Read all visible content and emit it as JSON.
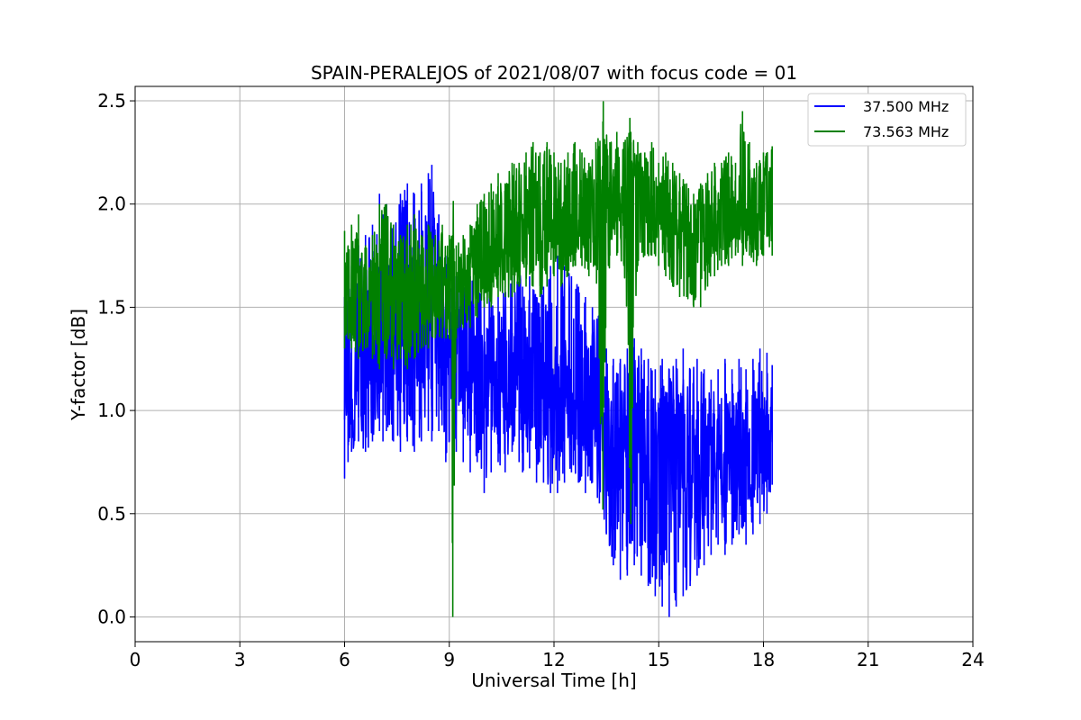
{
  "chart_data": {
    "type": "line",
    "title": "SPAIN-PERALEJOS of 2021/08/07 with focus code = 01",
    "xlabel": "Universal Time [h]",
    "ylabel": "Y-factor [dB]",
    "xlim": [
      0,
      24
    ],
    "ylim": [
      -0.12,
      2.57
    ],
    "xticks": [
      "0",
      "3",
      "6",
      "9",
      "12",
      "15",
      "18",
      "21",
      "24"
    ],
    "yticks": [
      "0.0",
      "0.5",
      "1.0",
      "1.5",
      "2.0",
      "2.5"
    ],
    "grid": true,
    "legend_position": "top-right",
    "series": [
      {
        "name": "37.500 MHz",
        "color": "#0000ff",
        "x": [
          6.0,
          6.1,
          6.2,
          6.4,
          6.6,
          6.8,
          7.0,
          7.1,
          7.2,
          7.4,
          7.6,
          7.8,
          8.0,
          8.2,
          8.4,
          8.5,
          8.7,
          8.9,
          9.0,
          9.2,
          9.4,
          9.6,
          9.8,
          10.0,
          10.2,
          10.4,
          10.6,
          10.8,
          11.0,
          11.1,
          11.3,
          11.5,
          11.7,
          11.9,
          12.1,
          12.3,
          12.5,
          12.7,
          12.9,
          13.1,
          13.3,
          13.5,
          13.7,
          13.9,
          14.1,
          14.3,
          14.5,
          14.7,
          14.9,
          15.1,
          15.3,
          15.5,
          15.7,
          15.9,
          16.1,
          16.3,
          16.5,
          16.7,
          16.9,
          17.1,
          17.3,
          17.5,
          17.7,
          17.9,
          18.1,
          18.25
        ],
        "y": [
          1.05,
          1.2,
          1.1,
          1.15,
          1.2,
          1.25,
          1.3,
          1.5,
          1.45,
          1.4,
          1.35,
          1.45,
          1.4,
          1.5,
          1.45,
          1.7,
          1.4,
          1.35,
          1.3,
          1.25,
          1.2,
          1.25,
          1.2,
          1.1,
          1.15,
          1.1,
          1.15,
          1.2,
          1.25,
          1.15,
          1.1,
          1.05,
          1.1,
          1.1,
          1.05,
          1.1,
          1.15,
          1.1,
          1.05,
          1.1,
          0.95,
          0.85,
          0.8,
          0.75,
          0.8,
          0.75,
          0.7,
          0.75,
          0.7,
          0.7,
          0.75,
          0.7,
          0.75,
          0.7,
          0.75,
          0.7,
          0.75,
          0.8,
          0.75,
          0.8,
          0.8,
          0.75,
          0.8,
          0.8,
          0.85,
          0.85
        ],
        "env_hi": [
          1.55,
          1.65,
          1.7,
          1.8,
          1.85,
          1.9,
          2.05,
          1.95,
          2.0,
          1.9,
          2.05,
          2.1,
          2.05,
          2.1,
          2.15,
          2.19,
          1.95,
          1.75,
          1.7,
          1.65,
          1.6,
          1.65,
          1.6,
          1.55,
          1.6,
          1.55,
          1.6,
          1.65,
          1.7,
          1.6,
          1.65,
          1.55,
          1.6,
          1.7,
          1.75,
          1.7,
          1.65,
          1.6,
          1.55,
          1.5,
          1.45,
          1.3,
          1.25,
          1.25,
          1.3,
          1.35,
          1.3,
          1.25,
          1.2,
          1.25,
          1.2,
          1.25,
          1.3,
          1.2,
          1.25,
          1.2,
          1.15,
          1.2,
          1.25,
          1.2,
          1.25,
          1.2,
          1.25,
          1.3,
          1.28,
          1.22
        ],
        "env_lo": [
          0.67,
          0.75,
          0.8,
          0.85,
          0.8,
          0.85,
          0.9,
          0.85,
          0.9,
          0.85,
          0.8,
          0.85,
          0.8,
          0.85,
          0.9,
          0.85,
          0.9,
          0.75,
          0.85,
          0.8,
          0.75,
          0.7,
          0.75,
          0.6,
          0.7,
          0.75,
          0.7,
          0.8,
          0.75,
          0.7,
          0.72,
          0.65,
          0.65,
          0.6,
          0.6,
          0.65,
          0.7,
          0.65,
          0.6,
          0.65,
          0.55,
          0.4,
          0.25,
          0.18,
          0.2,
          0.25,
          0.2,
          0.15,
          0.1,
          0.05,
          0.0,
          0.05,
          0.1,
          0.15,
          0.2,
          0.25,
          0.3,
          0.35,
          0.3,
          0.35,
          0.4,
          0.35,
          0.4,
          0.45,
          0.5,
          0.64
        ]
      },
      {
        "name": "73.563 MHz",
        "color": "#008000",
        "x": [
          6.0,
          6.1,
          6.2,
          6.4,
          6.6,
          6.8,
          7.0,
          7.2,
          7.4,
          7.6,
          7.8,
          8.0,
          8.2,
          8.4,
          8.6,
          8.8,
          9.0,
          9.1,
          9.2,
          9.4,
          9.6,
          9.8,
          10.0,
          10.2,
          10.4,
          10.6,
          10.8,
          11.0,
          11.2,
          11.4,
          11.6,
          11.8,
          12.0,
          12.2,
          12.4,
          12.6,
          12.8,
          13.0,
          13.2,
          13.4,
          13.6,
          13.8,
          14.0,
          14.2,
          14.4,
          14.6,
          14.8,
          15.0,
          15.2,
          15.4,
          15.6,
          15.8,
          16.0,
          16.2,
          16.4,
          16.6,
          16.8,
          17.0,
          17.2,
          17.4,
          17.6,
          17.8,
          18.0,
          18.25
        ],
        "y": [
          1.45,
          1.6,
          1.55,
          1.55,
          1.5,
          1.6,
          1.5,
          1.45,
          1.55,
          1.5,
          1.55,
          1.5,
          1.55,
          1.6,
          1.55,
          1.6,
          1.6,
          1.6,
          1.6,
          1.65,
          1.7,
          1.75,
          1.7,
          1.75,
          1.8,
          1.75,
          1.8,
          1.85,
          1.9,
          1.95,
          1.9,
          1.95,
          1.9,
          1.95,
          1.9,
          1.9,
          1.95,
          1.9,
          2.0,
          2.05,
          2.0,
          2.05,
          2.0,
          2.0,
          2.05,
          2.0,
          2.0,
          1.95,
          2.0,
          1.95,
          1.9,
          1.85,
          1.8,
          1.85,
          1.85,
          1.9,
          1.95,
          1.9,
          1.95,
          2.0,
          1.95,
          2.0,
          1.95,
          2.0
        ],
        "env_hi": [
          1.87,
          1.8,
          1.9,
          1.95,
          1.8,
          1.85,
          2.0,
          2.0,
          1.9,
          1.85,
          1.9,
          1.95,
          1.85,
          1.9,
          1.85,
          1.9,
          1.85,
          1.85,
          1.8,
          1.85,
          1.9,
          2.0,
          2.05,
          2.1,
          2.15,
          2.1,
          2.2,
          2.2,
          2.25,
          2.3,
          2.25,
          2.3,
          2.25,
          2.2,
          2.25,
          2.3,
          2.25,
          2.2,
          2.3,
          2.4,
          2.3,
          2.35,
          2.3,
          2.35,
          2.3,
          2.25,
          2.3,
          2.2,
          2.25,
          2.2,
          2.15,
          2.1,
          2.05,
          2.1,
          2.15,
          2.2,
          2.2,
          2.25,
          2.2,
          2.45,
          2.3,
          2.2,
          2.25,
          2.28
        ],
        "env_lo": [
          1.3,
          1.35,
          1.3,
          1.25,
          1.3,
          1.25,
          1.2,
          1.25,
          1.2,
          1.25,
          1.2,
          1.25,
          1.3,
          1.3,
          1.35,
          1.35,
          1.35,
          0.0,
          1.35,
          1.4,
          1.4,
          1.45,
          1.5,
          1.5,
          1.55,
          1.55,
          1.55,
          1.6,
          1.6,
          1.6,
          1.55,
          1.6,
          1.65,
          1.6,
          1.65,
          1.7,
          1.7,
          1.65,
          1.7,
          0.52,
          1.75,
          1.75,
          1.7,
          0.45,
          1.7,
          1.75,
          1.75,
          1.7,
          1.65,
          1.6,
          1.55,
          1.55,
          1.5,
          1.5,
          1.6,
          1.65,
          1.7,
          1.7,
          1.75,
          1.7,
          1.75,
          1.7,
          1.75,
          1.75
        ]
      }
    ]
  }
}
